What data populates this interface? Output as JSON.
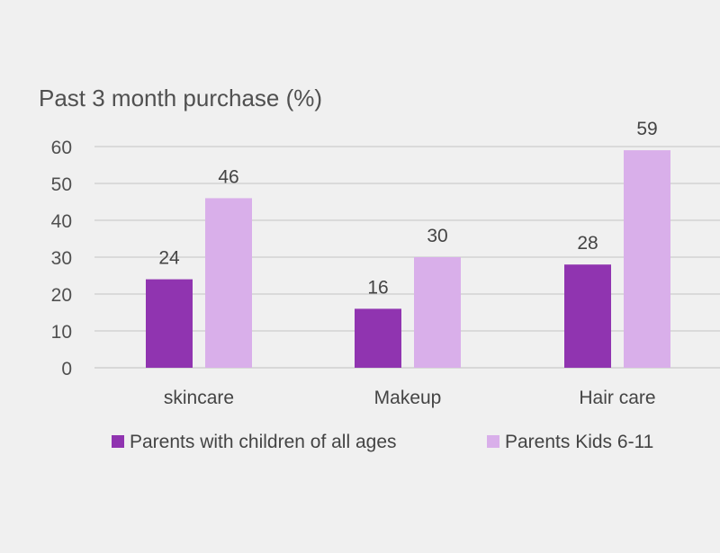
{
  "chart_data": {
    "type": "bar",
    "title": "Past 3 month purchase (%)",
    "categories": [
      "skincare",
      "Makeup",
      "Hair care"
    ],
    "series": [
      {
        "name": "Parents with children of all ages",
        "values": [
          24,
          16,
          28
        ],
        "color": "#9034b0"
      },
      {
        "name": "Parents Kids 6-11",
        "values": [
          46,
          30,
          59
        ],
        "color": "#d9afea"
      }
    ],
    "yticks": [
      "0",
      "10",
      "20",
      "30",
      "40",
      "50",
      "60"
    ],
    "ylim": [
      0,
      60
    ],
    "grid": true,
    "legend_position": "bottom"
  }
}
